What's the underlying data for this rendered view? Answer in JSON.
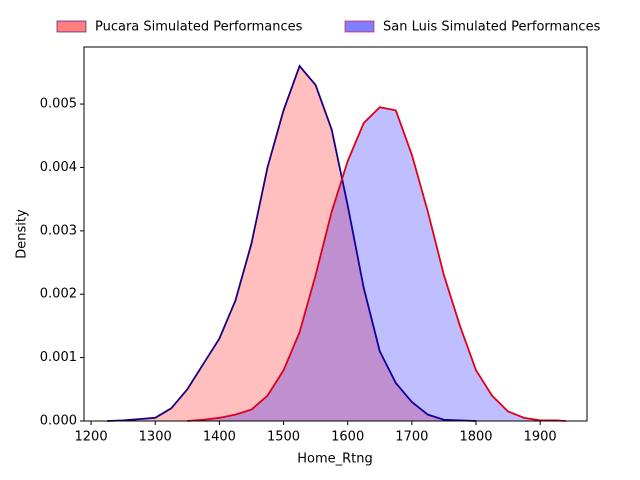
{
  "chart_data": {
    "type": "area",
    "xlabel": "Home_Rtng",
    "ylabel": "Density",
    "x": [
      1225,
      1250,
      1275,
      1300,
      1325,
      1350,
      1375,
      1400,
      1425,
      1450,
      1475,
      1500,
      1525,
      1550,
      1575,
      1600,
      1625,
      1650,
      1675,
      1700,
      1725,
      1750,
      1775,
      1800,
      1825,
      1850,
      1875,
      1900,
      1925,
      1940
    ],
    "series": [
      {
        "name": "Pucara Simulated Performances",
        "color": "#ff0000",
        "edgecolor": "#1a0080",
        "values": [
          0,
          1e-05,
          3e-05,
          5e-05,
          0.0002,
          0.0005,
          0.0009,
          0.0013,
          0.0019,
          0.0028,
          0.004,
          0.0049,
          0.0056,
          0.0053,
          0.0046,
          0.0034,
          0.0021,
          0.0011,
          0.0006,
          0.0003,
          0.0001,
          2e-05,
          1e-05,
          0,
          null,
          null,
          null,
          null,
          null,
          null
        ]
      },
      {
        "name": "San Luis Simulated Performances",
        "color": "#0000ff",
        "edgecolor": "#e0001a",
        "values": [
          null,
          null,
          null,
          null,
          null,
          0,
          2e-05,
          5e-05,
          0.0001,
          0.00018,
          0.0004,
          0.0008,
          0.0014,
          0.0023,
          0.0033,
          0.0041,
          0.0047,
          0.00495,
          0.0049,
          0.0042,
          0.0033,
          0.0023,
          0.0015,
          0.0008,
          0.0004,
          0.00015,
          5e-05,
          1e-05,
          1e-05,
          0
        ]
      }
    ],
    "xlim": [
      1189,
      1973
    ],
    "ylim": [
      0,
      0.0059
    ],
    "xticks": [
      1200,
      1300,
      1400,
      1500,
      1600,
      1700,
      1800,
      1900
    ],
    "yticks": [
      {
        "value": 0,
        "label": "0.000"
      },
      {
        "value": 0.001,
        "label": "0.001"
      },
      {
        "value": 0.002,
        "label": "0.002"
      },
      {
        "value": 0.003,
        "label": "0.003"
      },
      {
        "value": 0.004,
        "label": "0.004"
      },
      {
        "value": 0.005,
        "label": "0.005"
      }
    ],
    "legend": "upper center outside"
  }
}
